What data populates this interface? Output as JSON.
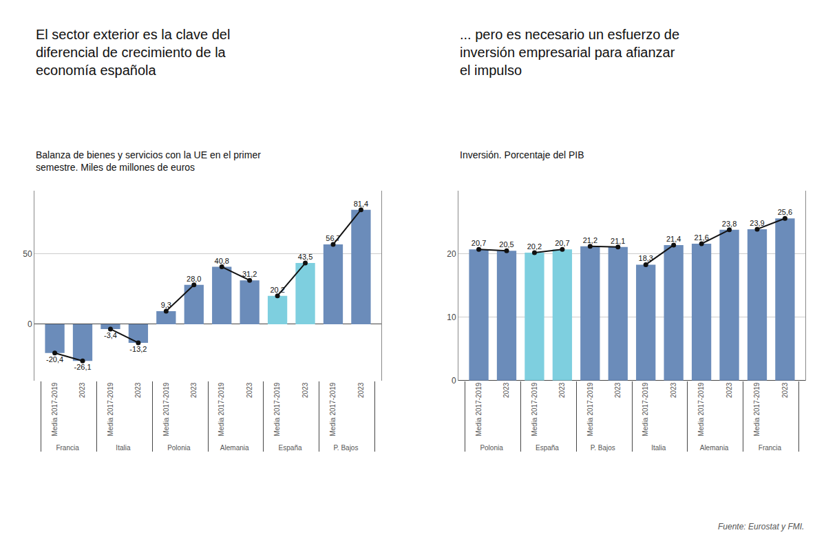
{
  "chart_data": [
    {
      "type": "bar",
      "title": "El sector exterior es la clave del\ndiferencial de crecimiento de la\neconomía española",
      "subtitle": "Balanza de bienes y servicios con la UE en el primer\nsemestre. Miles de millones de euros",
      "categories": [
        "Francia",
        "Italia",
        "Polonia",
        "Alemania",
        "España",
        "P. Bajos"
      ],
      "series": [
        {
          "name": "Media 2017-2019",
          "values": [
            -20.4,
            -3.4,
            9.3,
            40.8,
            20.2,
            56.7
          ],
          "value_labels": [
            "-20,4",
            "-3,4",
            "9,3",
            "40,8",
            "20,2",
            "56,7"
          ],
          "colors": [
            "#6b8cba",
            "#6b8cba",
            "#6b8cba",
            "#6b8cba",
            "#7ecfdf",
            "#6b8cba"
          ]
        },
        {
          "name": "2023",
          "values": [
            -26.1,
            -13.2,
            28.0,
            31.2,
            43.5,
            81.4
          ],
          "value_labels": [
            "-26,1",
            "-13,2",
            "28,0",
            "31,2",
            "43,5",
            "81,4"
          ],
          "colors": [
            "#6b8cba",
            "#6b8cba",
            "#6b8cba",
            "#6b8cba",
            "#7ecfdf",
            "#6b8cba"
          ]
        }
      ],
      "color": "#111111",
      "ylim": [
        -40,
        95
      ],
      "yticks": [
        0,
        50
      ],
      "grid": true,
      "data_labels": true
    },
    {
      "type": "bar",
      "title": "... pero es necesario un esfuerzo de\ninversión empresarial para afianzar\nel impulso",
      "subtitle": "Inversión. Porcentaje del PIB",
      "categories": [
        "Polonia",
        "España",
        "P. Bajos",
        "Italia",
        "Alemania",
        "Francia"
      ],
      "series": [
        {
          "name": "Media 2017-2019",
          "values": [
            20.7,
            20.2,
            21.2,
            18.3,
            21.6,
            23.9
          ],
          "value_labels": [
            "20,7",
            "20,2",
            "21,2",
            "18,3",
            "21,6",
            "23,9"
          ],
          "colors": [
            "#6b8cba",
            "#7ecfdf",
            "#6b8cba",
            "#6b8cba",
            "#6b8cba",
            "#6b8cba"
          ]
        },
        {
          "name": "2023",
          "values": [
            20.5,
            20.7,
            21.1,
            21.4,
            23.8,
            25.6
          ],
          "value_labels": [
            "20,5",
            "20,7",
            "21,1",
            "21,4",
            "23,8",
            "25,6"
          ],
          "colors": [
            "#6b8cba",
            "#7ecfdf",
            "#6b8cba",
            "#6b8cba",
            "#6b8cba",
            "#6b8cba"
          ]
        }
      ],
      "color": "#111111",
      "ylim": [
        0,
        30
      ],
      "yticks": [
        0,
        10,
        20
      ],
      "grid": true,
      "data_labels": true,
      "annotations": [
        "Fuente: Eurostat y FMI."
      ]
    }
  ]
}
